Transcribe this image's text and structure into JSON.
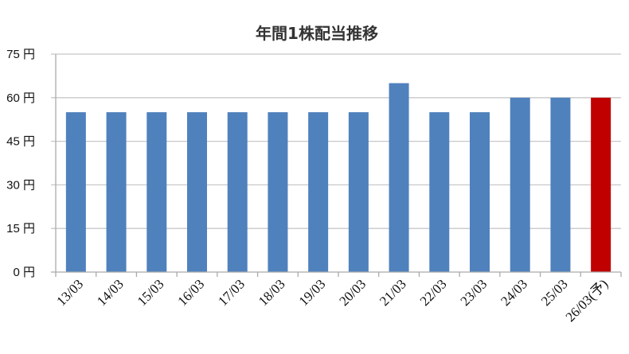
{
  "chart_data": {
    "type": "bar",
    "title": "年間1株配当推移",
    "xlabel": "",
    "ylabel": "",
    "categories": [
      "13/03",
      "14/03",
      "15/03",
      "16/03",
      "17/03",
      "18/03",
      "19/03",
      "20/03",
      "21/03",
      "22/03",
      "23/03",
      "24/03",
      "25/03",
      "26/03(予)"
    ],
    "values": [
      55,
      55,
      55,
      55,
      55,
      55,
      55,
      55,
      65,
      55,
      55,
      60,
      60,
      60
    ],
    "ylim": [
      0,
      75
    ],
    "yticks": [
      0,
      15,
      30,
      45,
      60,
      75
    ],
    "ytick_labels": [
      "0 円",
      "15 円",
      "30 円",
      "45 円",
      "60 円",
      "75 円"
    ],
    "grid": true,
    "legend": "none",
    "colors": {
      "actual": "#4f81bd",
      "forecast": "#c00000"
    },
    "forecast_categories": [
      "26/03(予)"
    ]
  }
}
